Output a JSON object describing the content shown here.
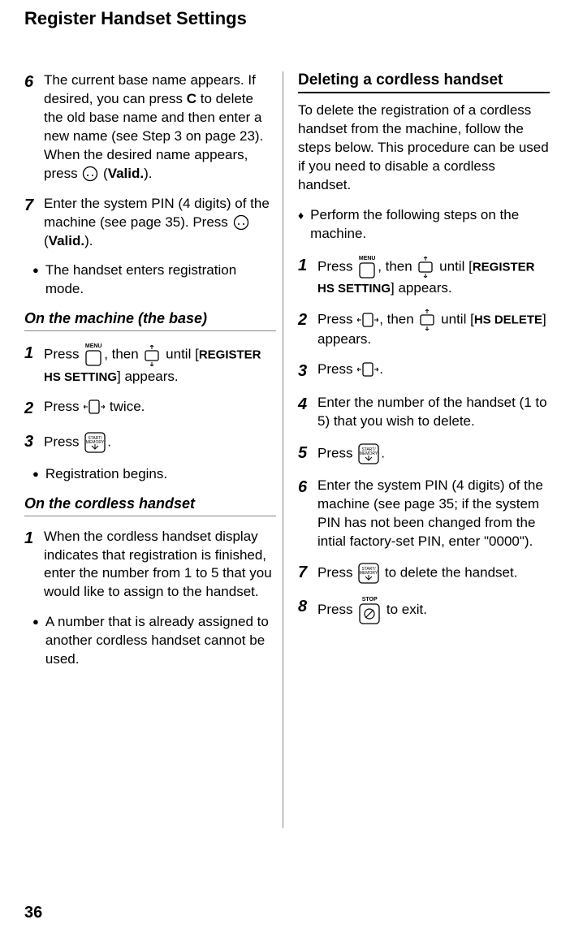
{
  "page_title": "Register Handset Settings",
  "page_number": "36",
  "left": {
    "step6_a": "The current base name appears. If desired, you can press ",
    "step6_c": "C",
    "step6_b": " to delete the old base name and then enter a new name (see Step 3 on page 23). When the desired name appears, press ",
    "step6_valid": " (",
    "step6_valid_word": "Valid.",
    "step6_end": ").",
    "step7_a": "Enter the system PIN (4 digits) of the machine (see page 35). Press ",
    "step7_valid": " (",
    "step7_valid_word": "Valid.",
    "step7_end": ").",
    "bullet1": "The handset enters registration mode.",
    "sub1": "On the machine (the base)",
    "menu_label": "MENU",
    "m1_a": "Press ",
    "m1_b": ", then ",
    "m1_c": " until [",
    "m1_setting": "REGISTER HS SETTING",
    "m1_d": "] appears.",
    "m2_a": "Press ",
    "m2_b": " twice.",
    "m3_a": "Press ",
    "m3_b": ".",
    "bullet2": "Registration begins.",
    "sub2": "On the cordless handset",
    "h1": "When the cordless handset display indicates that registration is finished, enter the number from 1 to 5 that you would like to assign to the handset.",
    "bullet3": "A number that is already assigned to another cordless handset cannot be used."
  },
  "right": {
    "section": "Deleting a cordless handset",
    "intro": "To delete the registration of a cordless handset from the machine, follow the steps below. This procedure can be used if you need to disable a cordless handset.",
    "diamond": "Perform the following steps on the machine.",
    "menu_label": "MENU",
    "r1_a": "Press ",
    "r1_b": ", then ",
    "r1_c": " until [",
    "r1_setting": "REGISTER HS SETTING",
    "r1_d": "] appears.",
    "r2_a": "Press ",
    "r2_b": ", then ",
    "r2_c": " until [",
    "r2_setting": "HS DELETE",
    "r2_d": "] appears.",
    "r3_a": "Press ",
    "r3_b": ".",
    "r4": "Enter the number of the handset (1 to 5) that you wish to delete.",
    "r5_a": "Press ",
    "r5_b": ".",
    "r6": "Enter the system PIN (4 digits) of the machine (see page 35; if the system PIN has not been changed from the intial factory-set PIN, enter \"0000\").",
    "r7_a": "Press ",
    "r7_b": " to delete the handset.",
    "stop_label": "STOP",
    "r8_a": "Press ",
    "r8_b": " to exit."
  },
  "svg": {
    "circle_btn": "<svg width='20' height='20'><circle cx='10' cy='10' r='8.5' fill='none' stroke='#000' stroke-width='1.3'/><circle cx='7' cy='12' r='1' fill='#000'/><circle cx='13' cy='12' r='1' fill='#000'/></svg>",
    "sq_btn": "<svg width='22' height='22'><rect x='2' y='2' width='18' height='18' rx='3' fill='none' stroke='#000' stroke-width='1.3'/></svg>",
    "nav_btn_lr": "<svg width='26' height='22'><rect x='7' y='3' width='12' height='16' rx='2' fill='none' stroke='#000' stroke-width='1.3'/><path d='M5 11 L1 11 M2 9 L0 11 L2 13' fill='none' stroke='#000' stroke-width='1'/><path d='M21 11 L25 11 M24 9 L26 11 L24 13' fill='none' stroke='#000' stroke-width='1'/></svg>",
    "nav_btn_ud": "<svg width='22' height='26'><rect x='3' y='7' width='16' height='12' rx='2' fill='none' stroke='#000' stroke-width='1.3'/><path d='M11 5 L11 1 M9 2 L11 0 L13 2' fill='none' stroke='#000' stroke-width='1'/><path d='M11 21 L11 25 M9 24 L11 26 L13 24' fill='none' stroke='#000' stroke-width='1'/></svg>",
    "start_mem": "<svg width='28' height='28'><rect x='2' y='2' width='24' height='24' rx='4' fill='none' stroke='#000' stroke-width='1.3'/><text x='14' y='10' font-size='5' text-anchor='middle' font-family='Arial'>START/</text><text x='14' y='15' font-size='5' text-anchor='middle' font-family='Arial'>MEMORY</text><path d='M10 18 L14 22 L18 18 M14 22 L14 16' fill='none' stroke='#000' stroke-width='1'/></svg>",
    "stop_btn": "<svg width='28' height='28'><rect x='2' y='2' width='24' height='24' rx='4' fill='none' stroke='#000' stroke-width='1.3'/><circle cx='14' cy='14' r='6' fill='none' stroke='#000' stroke-width='1.2'/><line x1='9' y1='19' x2='19' y2='9' stroke='#000' stroke-width='1.2'/></svg>"
  }
}
